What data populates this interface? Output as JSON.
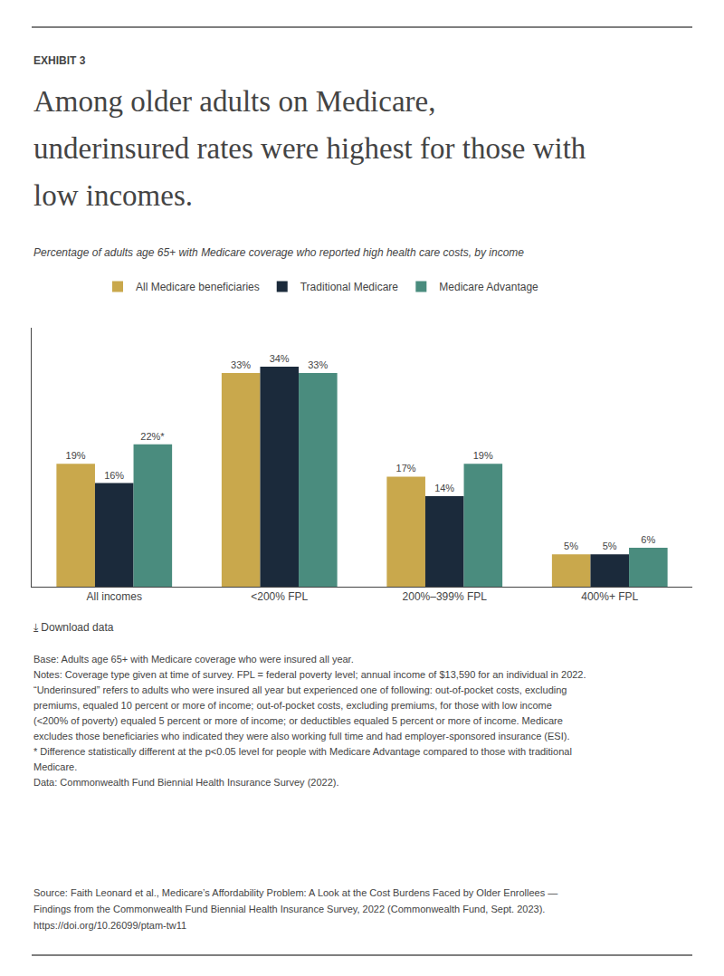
{
  "chart_data": {
    "type": "bar",
    "label": "EXHIBIT 3",
    "title": [
      "Among older adults on Medicare,",
      "underinsured rates were highest for those with",
      "low incomes."
    ],
    "subtitle": "Percentage of adults age 65+ with Medicare coverage who reported high health care costs, by income",
    "categories": [
      "All incomes",
      "<200% FPL",
      "200%–399% FPL",
      "400%+ FPL"
    ],
    "series": [
      {
        "name": "All Medicare beneficiaries",
        "color": "#C9A84C",
        "values": [
          19,
          33,
          17,
          5
        ],
        "value_labels": [
          "19%",
          "33%",
          "17%",
          "5%"
        ]
      },
      {
        "name": "Traditional Medicare",
        "color": "#1B2A3B",
        "values": [
          16,
          34,
          14,
          5
        ],
        "value_labels": [
          "16%",
          "34%",
          "14%",
          "5%"
        ]
      },
      {
        "name": "Medicare Advantage",
        "color": "#4A8C7E",
        "values": [
          22,
          33,
          19,
          6
        ],
        "value_labels": [
          "22%*",
          "33%",
          "19%",
          "6%"
        ]
      }
    ],
    "ylim": [
      0,
      40
    ],
    "tick_labels": "x",
    "grid": false,
    "data_labels": true,
    "legend": "top",
    "download_text": "⤓ Download data",
    "notes": [
      "Base: Adults age 65+ with Medicare coverage who were insured all year.",
      "Notes: Coverage type given at time of survey. FPL = federal poverty level; annual income of $13,590 for an individual in 2022.",
      "“Underinsured” refers to adults who were insured all year but experienced one of following: out-of-pocket costs, excluding",
      "premiums, equaled 10 percent or more of income; out-of-pocket costs, excluding premiums, for those with low income",
      "(<200% of poverty) equaled 5 percent or more of income; or deductibles equaled 5 percent or more of income. Medicare",
      "excludes those beneficiaries who indicated they were also working full time and had employer-sponsored insurance (ESI).",
      "* Difference statistically different at the p<0.05 level for people with Medicare Advantage compared to those with traditional",
      "Medicare.",
      "Data: Commonwealth Fund Biennial Health Insurance Survey (2022)."
    ],
    "source": [
      "Source: Faith Leonard et al., Medicare’s Affordability Problem: A Look at the Cost Burdens Faced by Older Enrollees —",
      "Findings from the Commonwealth Fund Biennial Health Insurance Survey, 2022 (Commonwealth Fund, Sept. 2023).",
      "https://doi.org/10.26099/ptam-tw11"
    ]
  }
}
